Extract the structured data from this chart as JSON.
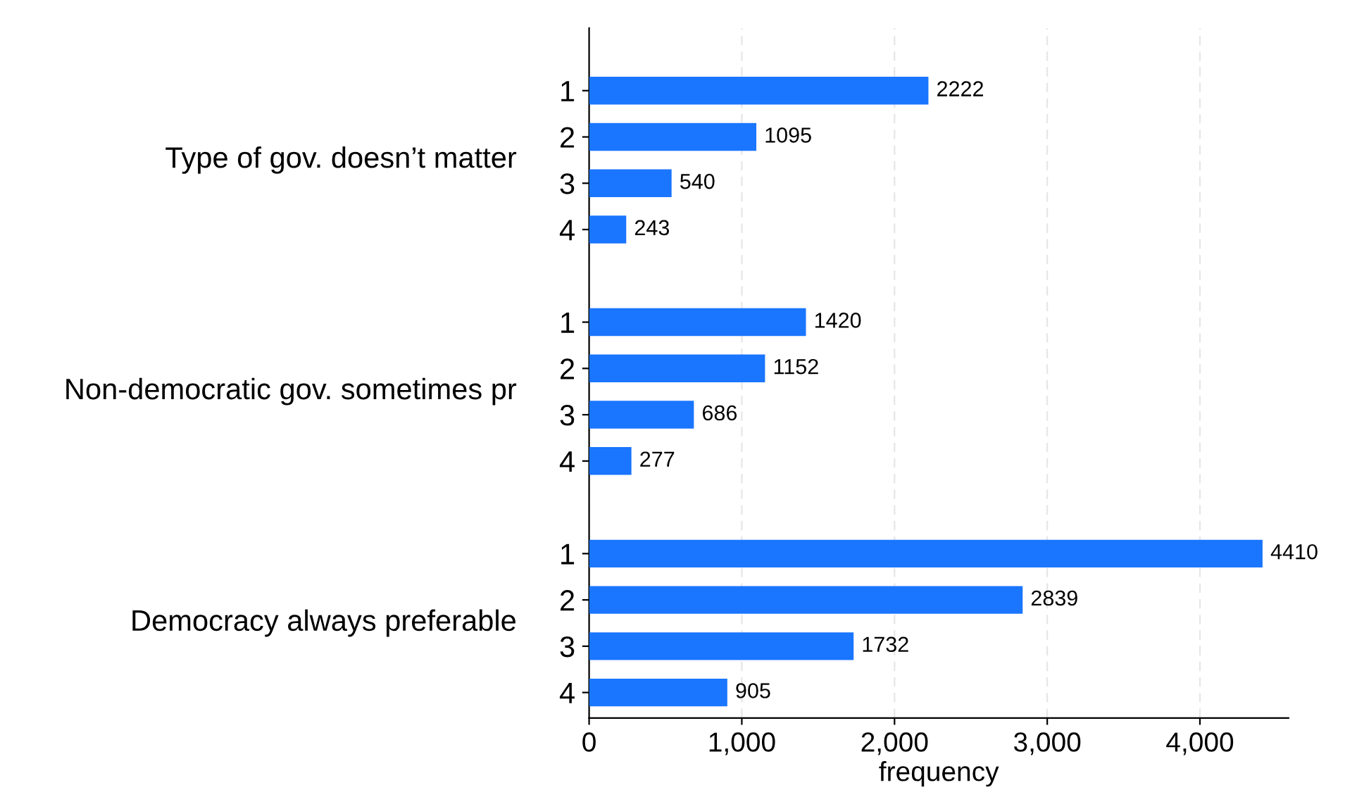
{
  "chart_data": {
    "type": "bar",
    "orientation": "horizontal",
    "xlabel": "frequency",
    "categories": [
      "1",
      "2",
      "3",
      "4",
      null,
      "1",
      "2",
      "3",
      "4",
      null,
      "1",
      "2",
      "3",
      "4"
    ],
    "values": [
      2222,
      1095,
      540,
      243,
      null,
      1420,
      1152,
      686,
      277,
      null,
      4410,
      2839,
      1732,
      905
    ],
    "value_labels": [
      "2222",
      "1095",
      "540",
      "243",
      null,
      "1420",
      "1152",
      "686",
      "277",
      null,
      "4410",
      "2839",
      "1732",
      "905"
    ],
    "annotations": [
      "Type of gov. doesn’t matter",
      "Non-democratic gov. sometimes pr",
      "Democracy always preferable"
    ],
    "color": "#1a75ff",
    "xlim": [
      0,
      4580
    ],
    "xticks": [
      0,
      {
        "value": 1000,
        "label": "1,000"
      },
      {
        "value": 2000,
        "label": "2,000"
      },
      {
        "value": 3000,
        "label": "3,000"
      },
      {
        "value": 4000,
        "label": "4,000"
      }
    ],
    "grid": "x"
  }
}
